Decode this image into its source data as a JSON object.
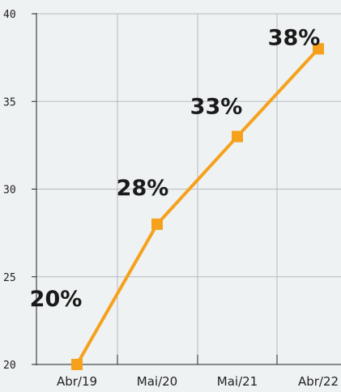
{
  "chart_data": {
    "type": "line",
    "categories": [
      "Abr/19",
      "Mai/20",
      "Mai/21",
      "Abr/22"
    ],
    "series": [
      {
        "values": [
          20,
          28,
          33,
          38
        ],
        "data_labels": [
          "20%",
          "28%",
          "33%",
          "38%"
        ],
        "color": "#f5a11c"
      }
    ],
    "title": "",
    "xlabel": "",
    "ylabel": "",
    "ylim": [
      20,
      40
    ],
    "yticks": [
      "20",
      "25",
      "30",
      "35",
      "40"
    ],
    "grid": true,
    "legend": "none",
    "marker": "square"
  },
  "colors": {
    "background": "#eef2f3",
    "grid": "#b5bbbe",
    "axis": "#222222",
    "line": "#f5a11c"
  }
}
